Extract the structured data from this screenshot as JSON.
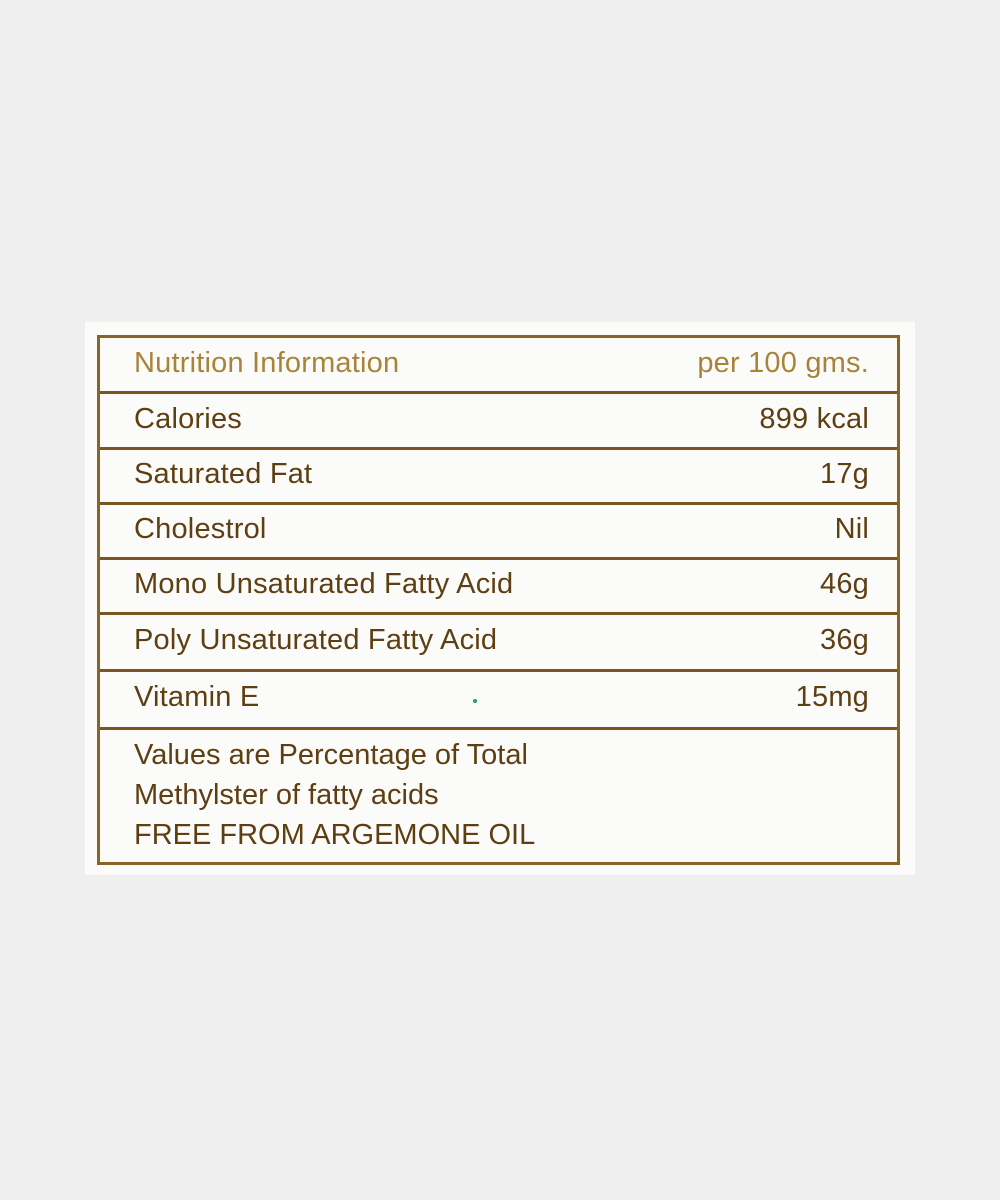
{
  "label": {
    "header": {
      "title": "Nutrition Information",
      "per": "per 100 gms."
    },
    "rows": [
      {
        "name": "Calories",
        "value": "899 kcal"
      },
      {
        "name": "Saturated Fat",
        "value": "17g"
      },
      {
        "name": "Cholestrol",
        "value": "Nil"
      },
      {
        "name": "Mono Unsaturated Fatty Acid",
        "value": "46g"
      },
      {
        "name": "Poly Unsaturated Fatty Acid",
        "value": "36g"
      },
      {
        "name": "Vitamin E",
        "value": "15mg"
      }
    ],
    "footer": [
      "Values are Percentage of Total",
      "Methylster of fatty acids",
      "FREE FROM ARGEMONE OIL"
    ]
  },
  "colors": {
    "ink": "#5e3f12",
    "header_ink": "#a8843a",
    "border": "#8a6424",
    "background": "#efefef"
  }
}
